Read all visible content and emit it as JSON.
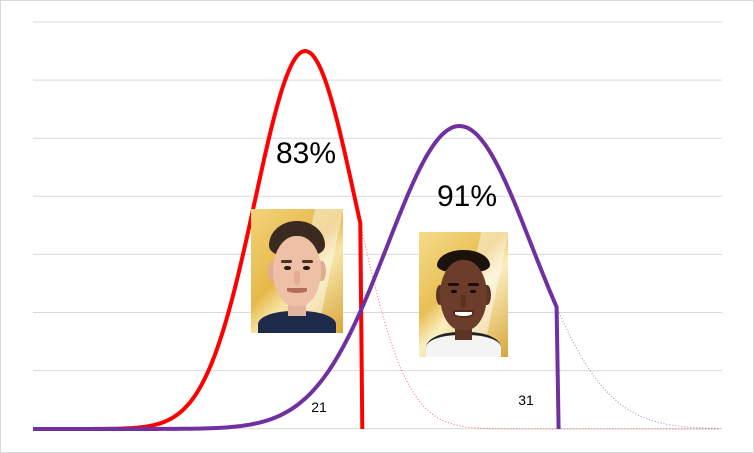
{
  "chart_data": {
    "type": "area",
    "title": "",
    "xlabel": "",
    "ylabel": "",
    "grid": true,
    "series": [
      {
        "color": "#ff0000",
        "peak_position": 0.395,
        "cutoff_position": 0.475,
        "percent_label": "83%",
        "value_label": "21"
      },
      {
        "color": "#7030a0",
        "peak_position": 0.619,
        "cutoff_position": 0.76,
        "percent_label": "91%",
        "value_label": "31"
      }
    ]
  },
  "photos": {
    "left_player": {
      "icon": "player-portrait-icon",
      "accent": "#e6b84a"
    },
    "right_player": {
      "icon": "player-portrait-icon",
      "accent": "#d9a53a"
    }
  }
}
